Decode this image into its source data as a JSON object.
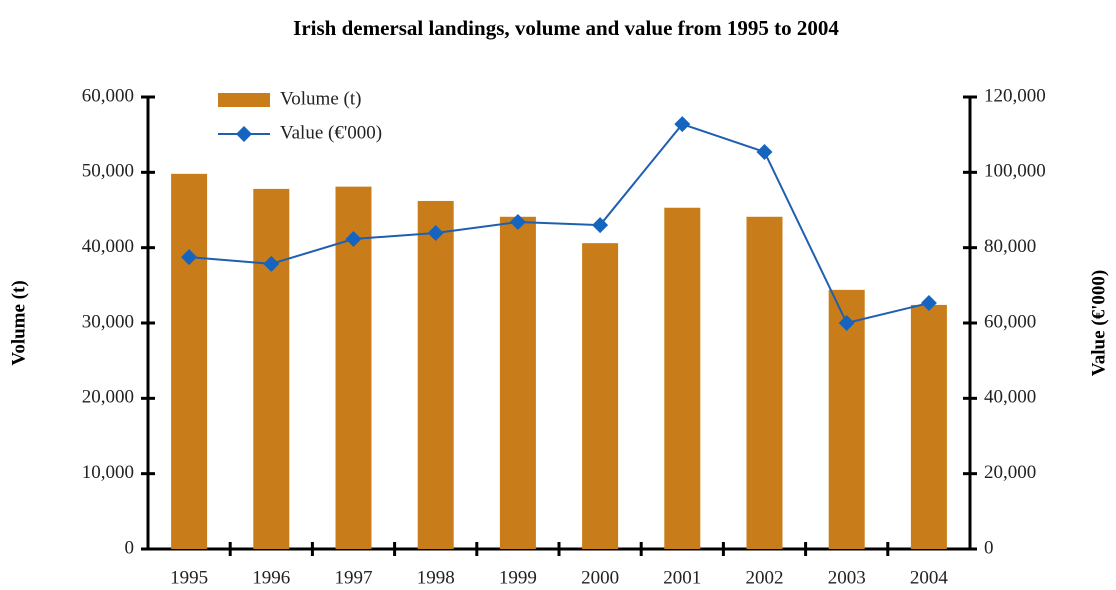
{
  "chart_data": {
    "type": "bar",
    "title": "Irish demersal landings, volume and value from 1995 to 2004",
    "categories": [
      "1995",
      "1996",
      "1997",
      "1998",
      "1999",
      "2000",
      "2001",
      "2002",
      "2003",
      "2004"
    ],
    "series": [
      {
        "name": "Volume (t)",
        "type": "bar",
        "color": "#c87d1a",
        "values": [
          49800,
          47800,
          48100,
          46200,
          44100,
          40600,
          45300,
          44100,
          34400,
          32400
        ]
      },
      {
        "name": "Value (€'000)",
        "type": "line",
        "axis": "y2",
        "color": "#1f5fb0",
        "values": [
          77500,
          75700,
          82300,
          83900,
          86800,
          86000,
          112800,
          105400,
          60000,
          65300
        ]
      }
    ],
    "ylabel": "Volume (t)",
    "y2label": "Value (€'000)",
    "ylim": [
      0,
      60000
    ],
    "yticks": [
      0,
      {
        "value": 10000,
        "label": "10,000"
      },
      {
        "value": 20000,
        "label": "20,000"
      },
      {
        "value": 30000,
        "label": "30,000"
      },
      {
        "value": 40000,
        "label": "40,000"
      },
      {
        "value": 50000,
        "label": "50,000"
      },
      {
        "value": 60000,
        "label": "60,000"
      }
    ],
    "y2lim": [
      0,
      120000
    ],
    "y2ticks": [
      0,
      {
        "value": 20000,
        "label": "20,000"
      },
      {
        "value": 40000,
        "label": "40,000"
      },
      {
        "value": 60000,
        "label": "60,000"
      },
      {
        "value": 80000,
        "label": "80,000"
      },
      {
        "value": 100000,
        "label": "100,000"
      },
      {
        "value": 120000,
        "label": "120,000"
      }
    ],
    "legend": "upper left",
    "grid": false
  }
}
